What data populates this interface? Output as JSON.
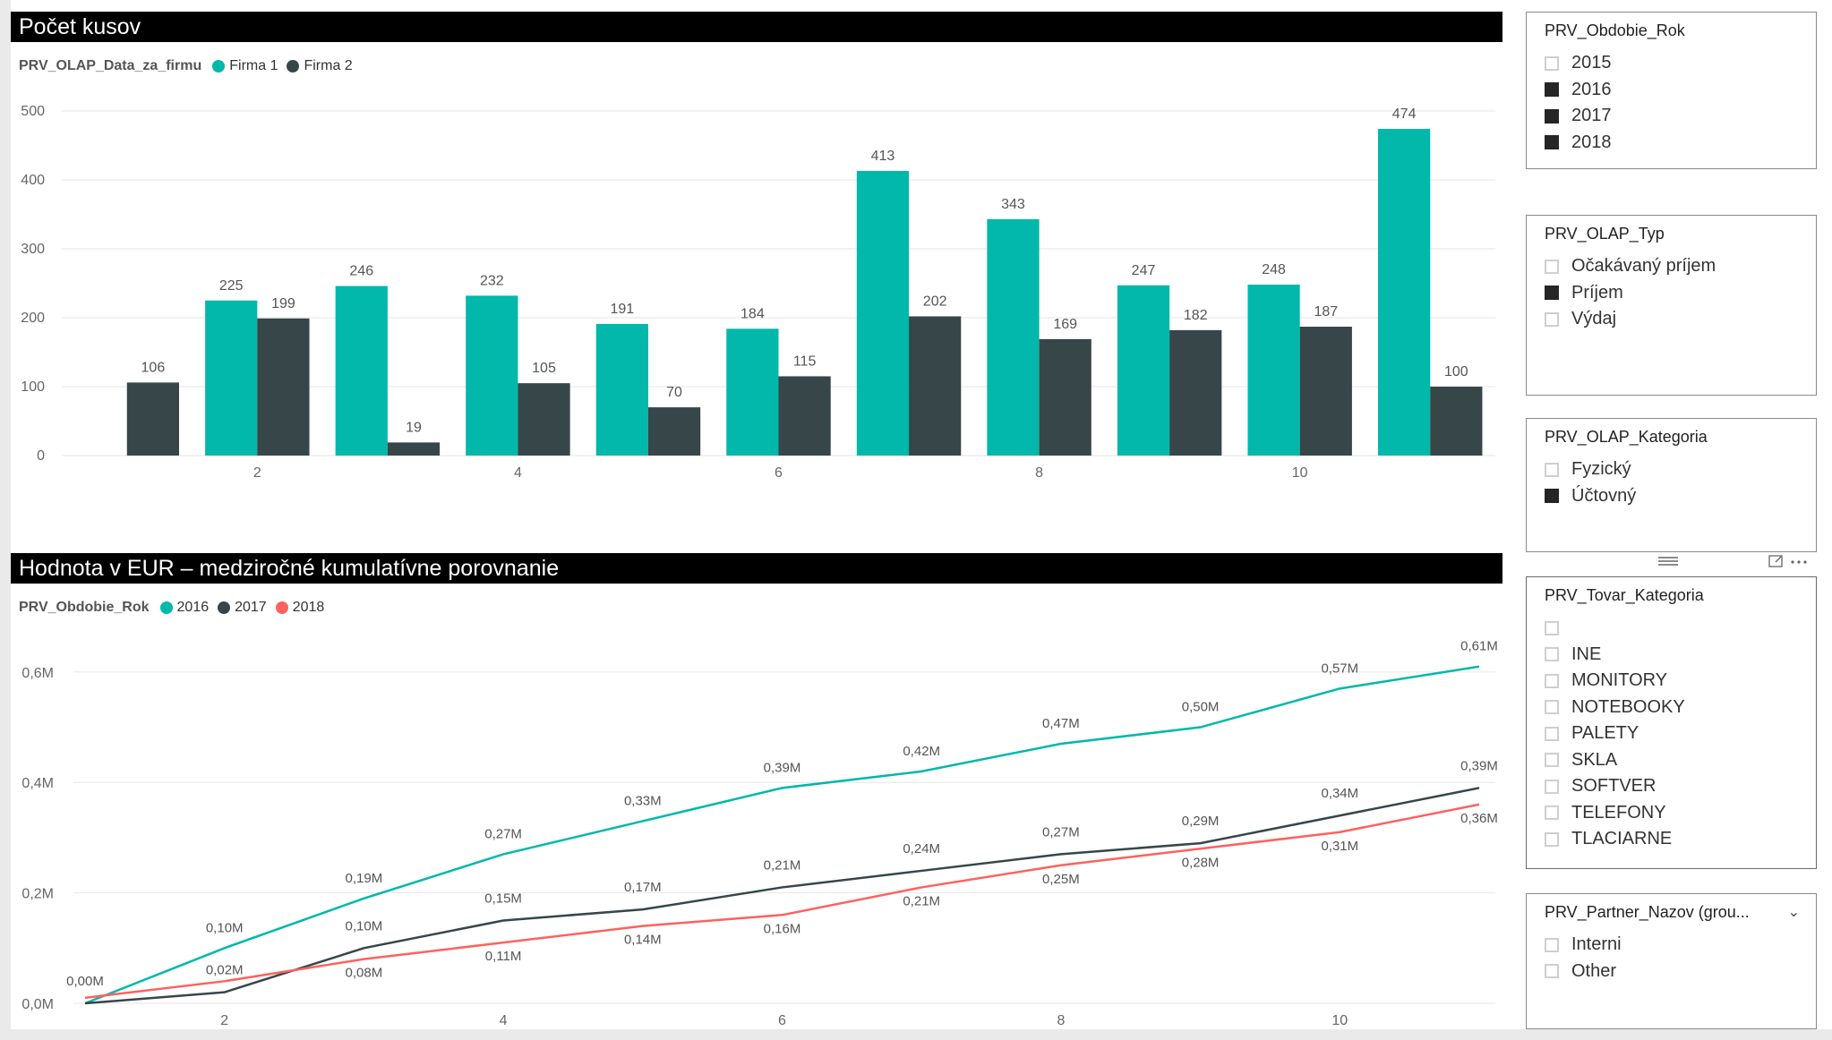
{
  "colors": {
    "firma1": "#01b8aa",
    "firma2": "#374649",
    "y2016": "#01b8aa",
    "y2017": "#374649",
    "y2018": "#fd625e"
  },
  "chart1": {
    "title": "Počet kusov",
    "legend": {
      "title": "PRV_OLAP_Data_za_firmu",
      "items": [
        "Firma 1",
        "Firma 2"
      ]
    },
    "chart_data": {
      "type": "bar",
      "categories": [
        1,
        2,
        3,
        4,
        5,
        6,
        7,
        8,
        9,
        10,
        11
      ],
      "x_tick_labels": [
        "2",
        "4",
        "6",
        "8",
        "10"
      ],
      "series": [
        {
          "name": "Firma 1",
          "values": [
            null,
            225,
            246,
            232,
            191,
            184,
            413,
            343,
            247,
            248,
            474
          ]
        },
        {
          "name": "Firma 2",
          "values": [
            106,
            199,
            19,
            105,
            70,
            115,
            202,
            169,
            182,
            187,
            100
          ]
        }
      ],
      "ylim": [
        0,
        500
      ],
      "y_ticks": [
        0,
        100,
        200,
        300,
        400,
        500
      ],
      "grid": true
    }
  },
  "chart2": {
    "title": "Hodnota v EUR – medziročné kumulatívne porovnanie",
    "legend": {
      "title": "PRV_Obdobie_Rok",
      "items": [
        "2016",
        "2017",
        "2018"
      ]
    },
    "chart_data": {
      "type": "line",
      "x": [
        1,
        2,
        3,
        4,
        5,
        6,
        7,
        8,
        9,
        10,
        11
      ],
      "x_tick_labels": [
        "2",
        "4",
        "6",
        "8",
        "10"
      ],
      "y_tick_labels": [
        "0,0M",
        "0,2M",
        "0,4M",
        "0,6M"
      ],
      "ylim": [
        0,
        0.65
      ],
      "series": [
        {
          "name": "2016",
          "values": [
            0.0,
            0.1,
            0.19,
            0.27,
            0.33,
            0.39,
            0.42,
            0.47,
            0.5,
            0.57,
            0.61
          ],
          "labels": [
            "",
            "0,10M",
            "0,19M",
            "0,27M",
            "0,33M",
            "0,39M",
            "0,42M",
            "0,47M",
            "0,50M",
            "0,57M",
            "0,61M"
          ]
        },
        {
          "name": "2017",
          "values": [
            0.0,
            0.02,
            0.1,
            0.15,
            0.17,
            0.21,
            0.24,
            0.27,
            0.29,
            0.34,
            0.39
          ],
          "labels": [
            "0,00M",
            "0,02M",
            "0,10M",
            "0,15M",
            "0,17M",
            "0,21M",
            "0,24M",
            "0,27M",
            "0,29M",
            "0,34M",
            "0,39M"
          ]
        },
        {
          "name": "2018",
          "values": [
            0.01,
            0.04,
            0.08,
            0.11,
            0.14,
            0.16,
            0.21,
            0.25,
            0.28,
            0.31,
            0.36
          ],
          "labels": [
            "",
            "",
            "0,08M",
            "0,11M",
            "0,14M",
            "0,16M",
            "0,21M",
            "0,25M",
            "0,28M",
            "0,31M",
            "0,36M"
          ]
        }
      ],
      "grid": true
    }
  },
  "slicers": [
    {
      "title": "PRV_Obdobie_Rok",
      "items": [
        {
          "label": "2015",
          "checked": false
        },
        {
          "label": "2016",
          "checked": true
        },
        {
          "label": "2017",
          "checked": true
        },
        {
          "label": "2018",
          "checked": true
        }
      ]
    },
    {
      "title": "PRV_OLAP_Typ",
      "items": [
        {
          "label": "Očakávaný príjem",
          "checked": false
        },
        {
          "label": "Príjem",
          "checked": true
        },
        {
          "label": "Výdaj",
          "checked": false
        }
      ]
    },
    {
      "title": "PRV_OLAP_Kategoria",
      "items": [
        {
          "label": "Fyzický",
          "checked": false
        },
        {
          "label": "Účtovný",
          "checked": true
        }
      ]
    },
    {
      "title": "PRV_Tovar_Kategoria",
      "items": [
        {
          "label": "",
          "checked": false
        },
        {
          "label": "INE",
          "checked": false
        },
        {
          "label": "MONITORY",
          "checked": false
        },
        {
          "label": "NOTEBOOKY",
          "checked": false
        },
        {
          "label": "PALETY",
          "checked": false
        },
        {
          "label": "SKLA",
          "checked": false
        },
        {
          "label": "SOFTVER",
          "checked": false
        },
        {
          "label": "TELEFONY",
          "checked": false
        },
        {
          "label": "TLACIARNE",
          "checked": false
        }
      ]
    },
    {
      "title": "PRV_Partner_Nazov (grou...",
      "items": [
        {
          "label": "Interni",
          "checked": false
        },
        {
          "label": "Other",
          "checked": false
        }
      ]
    }
  ]
}
